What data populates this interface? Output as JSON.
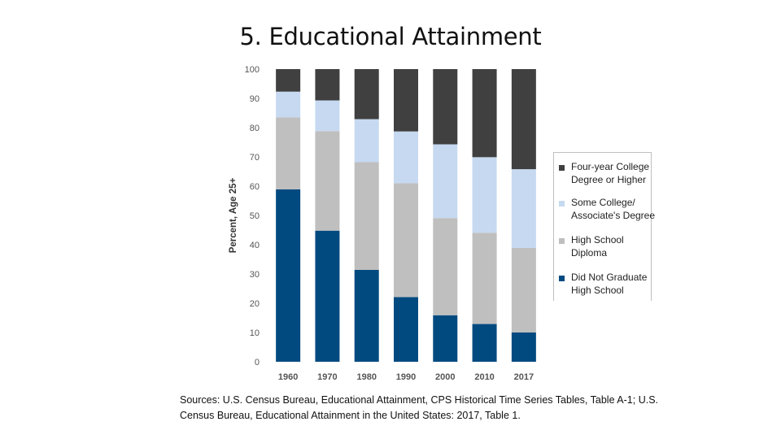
{
  "slide": {
    "title": "5. Educational Attainment",
    "sources": "Sources: U.S. Census Bureau, Educational Attainment, CPS Historical Time Series Tables, Table A-1; U.S. Census Bureau, Educational Attainment in the United States: 2017, Table 1."
  },
  "chart_data": {
    "type": "bar",
    "stacked": true,
    "categories": [
      "1960",
      "1970",
      "1980",
      "1990",
      "2000",
      "2010",
      "2017"
    ],
    "ylabel": "Percent, Age 25+",
    "xlabel": "",
    "ylim": [
      0,
      100
    ],
    "yticks": [
      "0",
      "10",
      "20",
      "30",
      "40",
      "50",
      "60",
      "70",
      "80",
      "90",
      "100"
    ],
    "grid": false,
    "legend_position": "right",
    "series": [
      {
        "name": "Did Not Graduate High School",
        "color": "#004a80",
        "values": [
          58.9,
          44.8,
          31.4,
          22.1,
          15.9,
          12.9,
          10.0
        ]
      },
      {
        "name": "High School Diploma",
        "color": "#bfbfbf",
        "values": [
          24.6,
          34.0,
          36.8,
          38.9,
          33.2,
          31.2,
          28.9
        ]
      },
      {
        "name": "Some College/ Associate's Degree",
        "color": "#c6d9f1",
        "values": [
          8.8,
          10.5,
          14.7,
          17.7,
          25.2,
          25.8,
          26.9
        ]
      },
      {
        "name": "Four-year College Degree or Higher",
        "color": "#404040",
        "values": [
          7.7,
          10.7,
          17.1,
          21.3,
          25.7,
          30.1,
          34.2
        ]
      }
    ],
    "legend_labels": [
      [
        "Four-year College",
        "Degree or Higher"
      ],
      [
        "Some College/",
        "Associate's Degree"
      ],
      [
        "High School",
        "Diploma"
      ],
      [
        "Did Not Graduate",
        "High School"
      ]
    ]
  }
}
